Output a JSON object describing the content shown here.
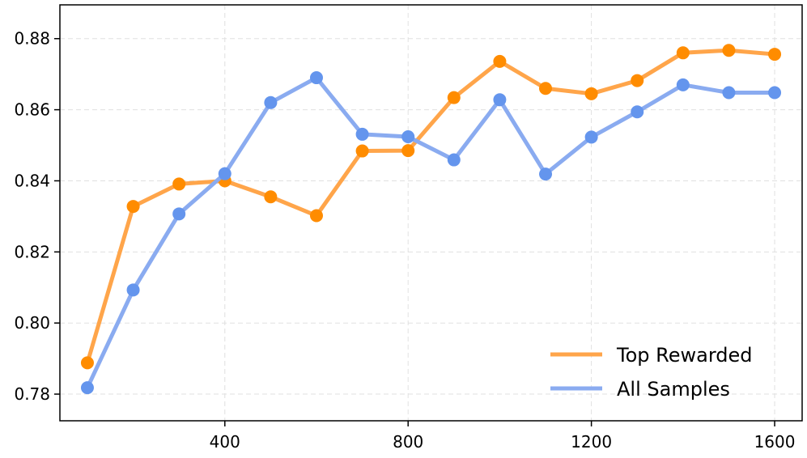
{
  "chart_data": {
    "type": "line",
    "title": "",
    "xlabel": "",
    "ylabel": "",
    "xlim": [
      40,
      1660
    ],
    "ylim": [
      0.7725,
      0.8895
    ],
    "xticks": [
      400,
      800,
      1200,
      1600
    ],
    "xtick_labels": [
      "400",
      "800",
      "1200",
      "1600"
    ],
    "yticks": [
      0.78,
      0.8,
      0.82,
      0.84,
      0.86,
      0.88
    ],
    "ytick_labels": [
      "0.78",
      "0.80",
      "0.82",
      "0.84",
      "0.86",
      "0.88"
    ],
    "grid": true,
    "legend_position": "lower-right",
    "x": [
      100,
      200,
      300,
      400,
      500,
      600,
      700,
      800,
      900,
      1000,
      1100,
      1200,
      1300,
      1400,
      1500,
      1600
    ],
    "series": [
      {
        "name": "Top Rewarded",
        "color": "#ff8c00",
        "line_color": "#ffa54a",
        "values": [
          0.7888,
          0.8328,
          0.8391,
          0.84,
          0.8355,
          0.8302,
          0.8484,
          0.8485,
          0.8634,
          0.8736,
          0.866,
          0.8645,
          0.8682,
          0.876,
          0.8767,
          0.8756
        ]
      },
      {
        "name": "All Samples",
        "color": "#6495ed",
        "line_color": "#8aabf0",
        "values": [
          0.7818,
          0.8093,
          0.8307,
          0.842,
          0.862,
          0.869,
          0.8531,
          0.8524,
          0.8459,
          0.8628,
          0.8419,
          0.8523,
          0.8594,
          0.867,
          0.8648,
          0.8648
        ]
      }
    ]
  }
}
